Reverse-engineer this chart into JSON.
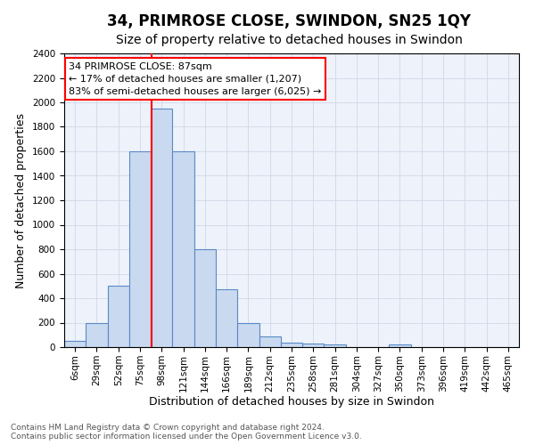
{
  "title": "34, PRIMROSE CLOSE, SWINDON, SN25 1QY",
  "subtitle": "Size of property relative to detached houses in Swindon",
  "xlabel": "Distribution of detached houses by size in Swindon",
  "ylabel": "Number of detached properties",
  "footer_line1": "Contains HM Land Registry data © Crown copyright and database right 2024.",
  "footer_line2": "Contains public sector information licensed under the Open Government Licence v3.0.",
  "categories": [
    "6sqm",
    "29sqm",
    "52sqm",
    "75sqm",
    "98sqm",
    "121sqm",
    "144sqm",
    "166sqm",
    "189sqm",
    "212sqm",
    "235sqm",
    "258sqm",
    "281sqm",
    "304sqm",
    "327sqm",
    "350sqm",
    "373sqm",
    "396sqm",
    "419sqm",
    "442sqm",
    "465sqm"
  ],
  "values": [
    50,
    200,
    500,
    1600,
    1950,
    1600,
    800,
    475,
    200,
    90,
    35,
    30,
    25,
    0,
    0,
    20,
    0,
    0,
    0,
    0,
    0
  ],
  "bar_color": "#c9d9ef",
  "bar_edge_color": "#5a8ac6",
  "vline_color": "red",
  "annotation_line1": "34 PRIMROSE CLOSE: 87sqm",
  "annotation_line2": "← 17% of detached houses are smaller (1,207)",
  "annotation_line3": "83% of semi-detached houses are larger (6,025) →",
  "annotation_box_color": "white",
  "annotation_box_edge": "red",
  "ylim": [
    0,
    2400
  ],
  "yticks": [
    0,
    200,
    400,
    600,
    800,
    1000,
    1200,
    1400,
    1600,
    1800,
    2000,
    2200,
    2400
  ],
  "grid_color": "#d0d8e8",
  "bg_color": "#eef2fa",
  "title_fontsize": 12,
  "subtitle_fontsize": 10,
  "axis_label_fontsize": 9,
  "tick_fontsize": 7.5,
  "annotation_fontsize": 8,
  "footer_fontsize": 6.5
}
